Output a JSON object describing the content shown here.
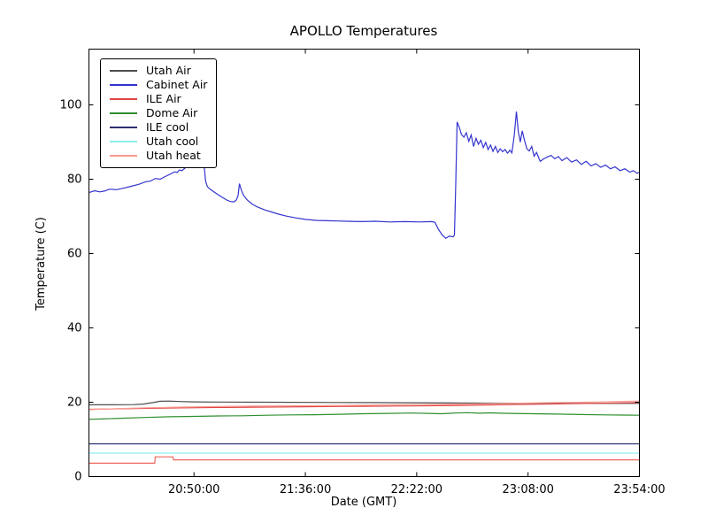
{
  "chart_data": {
    "type": "line",
    "title": "APOLLO Temperatures",
    "xlabel": "Date (GMT)",
    "ylabel": "Temperature (C)",
    "x_unit": "minutes after 20:00:00 GMT",
    "xlim": [
      6.6,
      234
    ],
    "ylim": [
      0,
      115
    ],
    "grid": false,
    "legend_position": "upper left",
    "frame_color": "#000000",
    "x_ticks": [
      {
        "t": 50,
        "label": "20:50:00"
      },
      {
        "t": 96,
        "label": "21:36:00"
      },
      {
        "t": 142,
        "label": "22:22:00"
      },
      {
        "t": 188,
        "label": "23:08:00"
      },
      {
        "t": 234,
        "label": "23:54:00"
      }
    ],
    "y_ticks": [
      {
        "v": 0,
        "label": "0"
      },
      {
        "v": 20,
        "label": "20"
      },
      {
        "v": 40,
        "label": "40"
      },
      {
        "v": 60,
        "label": "60"
      },
      {
        "v": 80,
        "label": "80"
      },
      {
        "v": 100,
        "label": "100"
      }
    ],
    "series": [
      {
        "name": "Utah Air",
        "color": "#4d4d4d",
        "in_legend": true,
        "points": [
          [
            6.6,
            19.3
          ],
          [
            15,
            19.3
          ],
          [
            25,
            19.35
          ],
          [
            29,
            19.5
          ],
          [
            33,
            19.9
          ],
          [
            36,
            20.25
          ],
          [
            40,
            20.3
          ],
          [
            44,
            20.2
          ],
          [
            50,
            20.1
          ],
          [
            60,
            20.05
          ],
          [
            80,
            20.0
          ],
          [
            100,
            19.95
          ],
          [
            120,
            19.9
          ],
          [
            140,
            19.85
          ],
          [
            160,
            19.8
          ],
          [
            180,
            19.75
          ],
          [
            200,
            19.7
          ],
          [
            220,
            19.7
          ],
          [
            234,
            19.7
          ]
        ]
      },
      {
        "name": "Cabinet Air",
        "color": "#3434cf",
        "in_legend": true,
        "points": [
          [
            6.6,
            76.4
          ],
          [
            9,
            76.9
          ],
          [
            11,
            76.6
          ],
          [
            13,
            76.8
          ],
          [
            15,
            77.3
          ],
          [
            18,
            77.2
          ],
          [
            21,
            77.6
          ],
          [
            24,
            78.1
          ],
          [
            27,
            78.6
          ],
          [
            30,
            79.3
          ],
          [
            32,
            79.5
          ],
          [
            34,
            80.2
          ],
          [
            36,
            80.0
          ],
          [
            38,
            80.7
          ],
          [
            40,
            81.3
          ],
          [
            42,
            82.0
          ],
          [
            43,
            81.8
          ],
          [
            44,
            82.5
          ],
          [
            45,
            82.3
          ],
          [
            46.5,
            83.1
          ],
          [
            48,
            83.6
          ],
          [
            49.5,
            83.3
          ],
          [
            51,
            84.0
          ],
          [
            52.5,
            83.7
          ],
          [
            53.5,
            84.3
          ],
          [
            54.3,
            82.8
          ],
          [
            54.8,
            79.5
          ],
          [
            55.5,
            78.0
          ],
          [
            56.5,
            77.4
          ],
          [
            58,
            76.7
          ],
          [
            60,
            75.8
          ],
          [
            62,
            75.0
          ],
          [
            63.5,
            74.4
          ],
          [
            65,
            74.0
          ],
          [
            66.5,
            73.9
          ],
          [
            67.5,
            74.4
          ],
          [
            68.2,
            75.6
          ],
          [
            68.8,
            78.8
          ],
          [
            69.5,
            77.2
          ],
          [
            70.5,
            75.6
          ],
          [
            72,
            74.4
          ],
          [
            74,
            73.3
          ],
          [
            76,
            72.6
          ],
          [
            79,
            71.8
          ],
          [
            82,
            71.2
          ],
          [
            85,
            70.6
          ],
          [
            88,
            70.1
          ],
          [
            92,
            69.6
          ],
          [
            96,
            69.2
          ],
          [
            101,
            68.9
          ],
          [
            107,
            68.8
          ],
          [
            113,
            68.7
          ],
          [
            119,
            68.6
          ],
          [
            125,
            68.7
          ],
          [
            131,
            68.5
          ],
          [
            137,
            68.6
          ],
          [
            143,
            68.5
          ],
          [
            148,
            68.6
          ],
          [
            149.5,
            68.4
          ],
          [
            151,
            66.5
          ],
          [
            152.5,
            65.0
          ],
          [
            154,
            64.1
          ],
          [
            155.5,
            64.7
          ],
          [
            157,
            64.5
          ],
          [
            157.6,
            65.0
          ],
          [
            158.1,
            78.0
          ],
          [
            158.7,
            95.4
          ],
          [
            159.6,
            93.9
          ],
          [
            160.5,
            92.0
          ],
          [
            161.5,
            91.3
          ],
          [
            162.5,
            92.5
          ],
          [
            163.5,
            90.2
          ],
          [
            164.5,
            91.9
          ],
          [
            165.5,
            88.8
          ],
          [
            166.5,
            91.0
          ],
          [
            167.5,
            89.4
          ],
          [
            168.5,
            90.5
          ],
          [
            169.5,
            88.5
          ],
          [
            170.5,
            89.9
          ],
          [
            171.5,
            88.0
          ],
          [
            172.5,
            89.2
          ],
          [
            173.5,
            87.5
          ],
          [
            174.5,
            88.8
          ],
          [
            175.5,
            87.2
          ],
          [
            176.5,
            88.2
          ],
          [
            177.5,
            87.4
          ],
          [
            178.5,
            88.0
          ],
          [
            179.5,
            87.0
          ],
          [
            180.5,
            87.8
          ],
          [
            181.3,
            87.1
          ],
          [
            182.3,
            91.8
          ],
          [
            183.2,
            98.2
          ],
          [
            184.0,
            92.7
          ],
          [
            184.8,
            90.0
          ],
          [
            185.6,
            93.0
          ],
          [
            186.5,
            90.5
          ],
          [
            187.5,
            88.2
          ],
          [
            188.5,
            87.6
          ],
          [
            189.5,
            88.8
          ],
          [
            190.5,
            86.2
          ],
          [
            191.5,
            87.2
          ],
          [
            193,
            84.8
          ],
          [
            194.5,
            85.5
          ],
          [
            196,
            86.0
          ],
          [
            197.5,
            86.4
          ],
          [
            199,
            85.5
          ],
          [
            200.5,
            86.1
          ],
          [
            202,
            85.0
          ],
          [
            204,
            85.8
          ],
          [
            206,
            84.6
          ],
          [
            208,
            85.2
          ],
          [
            210,
            84.0
          ],
          [
            212,
            84.8
          ],
          [
            214,
            83.6
          ],
          [
            216,
            84.2
          ],
          [
            218,
            83.2
          ],
          [
            220,
            83.8
          ],
          [
            222,
            82.8
          ],
          [
            224,
            83.3
          ],
          [
            226,
            82.3
          ],
          [
            228,
            82.8
          ],
          [
            230,
            81.9
          ],
          [
            231.5,
            82.3
          ],
          [
            233,
            81.6
          ],
          [
            234,
            81.9
          ]
        ]
      },
      {
        "name": "ILE Air",
        "color": "#e04545",
        "in_legend": true,
        "points": [
          [
            6.6,
            18.1
          ],
          [
            20,
            18.25
          ],
          [
            40,
            18.45
          ],
          [
            60,
            18.6
          ],
          [
            80,
            18.7
          ],
          [
            100,
            18.8
          ],
          [
            120,
            18.9
          ],
          [
            140,
            19.0
          ],
          [
            160,
            19.15
          ],
          [
            180,
            19.35
          ],
          [
            200,
            19.55
          ],
          [
            215,
            19.7
          ],
          [
            225,
            19.8
          ],
          [
            234,
            19.9
          ]
        ]
      },
      {
        "name": "Dome Air",
        "color": "#2f8f2f",
        "in_legend": true,
        "points": [
          [
            6.6,
            15.4
          ],
          [
            12,
            15.5
          ],
          [
            20,
            15.7
          ],
          [
            30,
            15.9
          ],
          [
            40,
            16.1
          ],
          [
            50,
            16.2
          ],
          [
            60,
            16.3
          ],
          [
            70,
            16.35
          ],
          [
            80,
            16.5
          ],
          [
            90,
            16.6
          ],
          [
            100,
            16.65
          ],
          [
            110,
            16.75
          ],
          [
            120,
            16.9
          ],
          [
            130,
            17.0
          ],
          [
            140,
            17.1
          ],
          [
            147,
            17.0
          ],
          [
            152,
            16.9
          ],
          [
            158,
            17.1
          ],
          [
            163,
            17.2
          ],
          [
            168,
            17.05
          ],
          [
            172,
            17.15
          ],
          [
            180,
            17.0
          ],
          [
            190,
            16.9
          ],
          [
            200,
            16.8
          ],
          [
            210,
            16.7
          ],
          [
            220,
            16.6
          ],
          [
            227,
            16.55
          ],
          [
            234,
            16.5
          ]
        ]
      },
      {
        "name": "ILE cool",
        "color": "#2e2e72",
        "in_legend": true,
        "points": [
          [
            6.6,
            8.8
          ],
          [
            234,
            8.8
          ]
        ]
      },
      {
        "name": "Utah cool",
        "color": "#8deeee",
        "in_legend": true,
        "points": [
          [
            6.6,
            6.3
          ],
          [
            234,
            6.3
          ]
        ]
      },
      {
        "name": "Utah heat",
        "color": "#f79a90",
        "in_legend": true,
        "points": [
          [
            6.6,
            18.0
          ],
          [
            15,
            18.2
          ],
          [
            30,
            18.5
          ],
          [
            45,
            18.7
          ],
          [
            60,
            18.85
          ],
          [
            80,
            19.0
          ],
          [
            100,
            19.1
          ],
          [
            120,
            19.2
          ],
          [
            140,
            19.35
          ],
          [
            160,
            19.5
          ],
          [
            180,
            19.7
          ],
          [
            200,
            19.9
          ],
          [
            215,
            20.05
          ],
          [
            225,
            20.2
          ],
          [
            234,
            20.3
          ]
        ]
      },
      {
        "name": "unlabeled red line",
        "color": "#ee675d",
        "in_legend": false,
        "points": [
          [
            6.6,
            3.6
          ],
          [
            33.8,
            3.6
          ],
          [
            34,
            5.3
          ],
          [
            41.3,
            5.3
          ],
          [
            41.5,
            4.5
          ],
          [
            234,
            4.5
          ]
        ]
      }
    ]
  }
}
